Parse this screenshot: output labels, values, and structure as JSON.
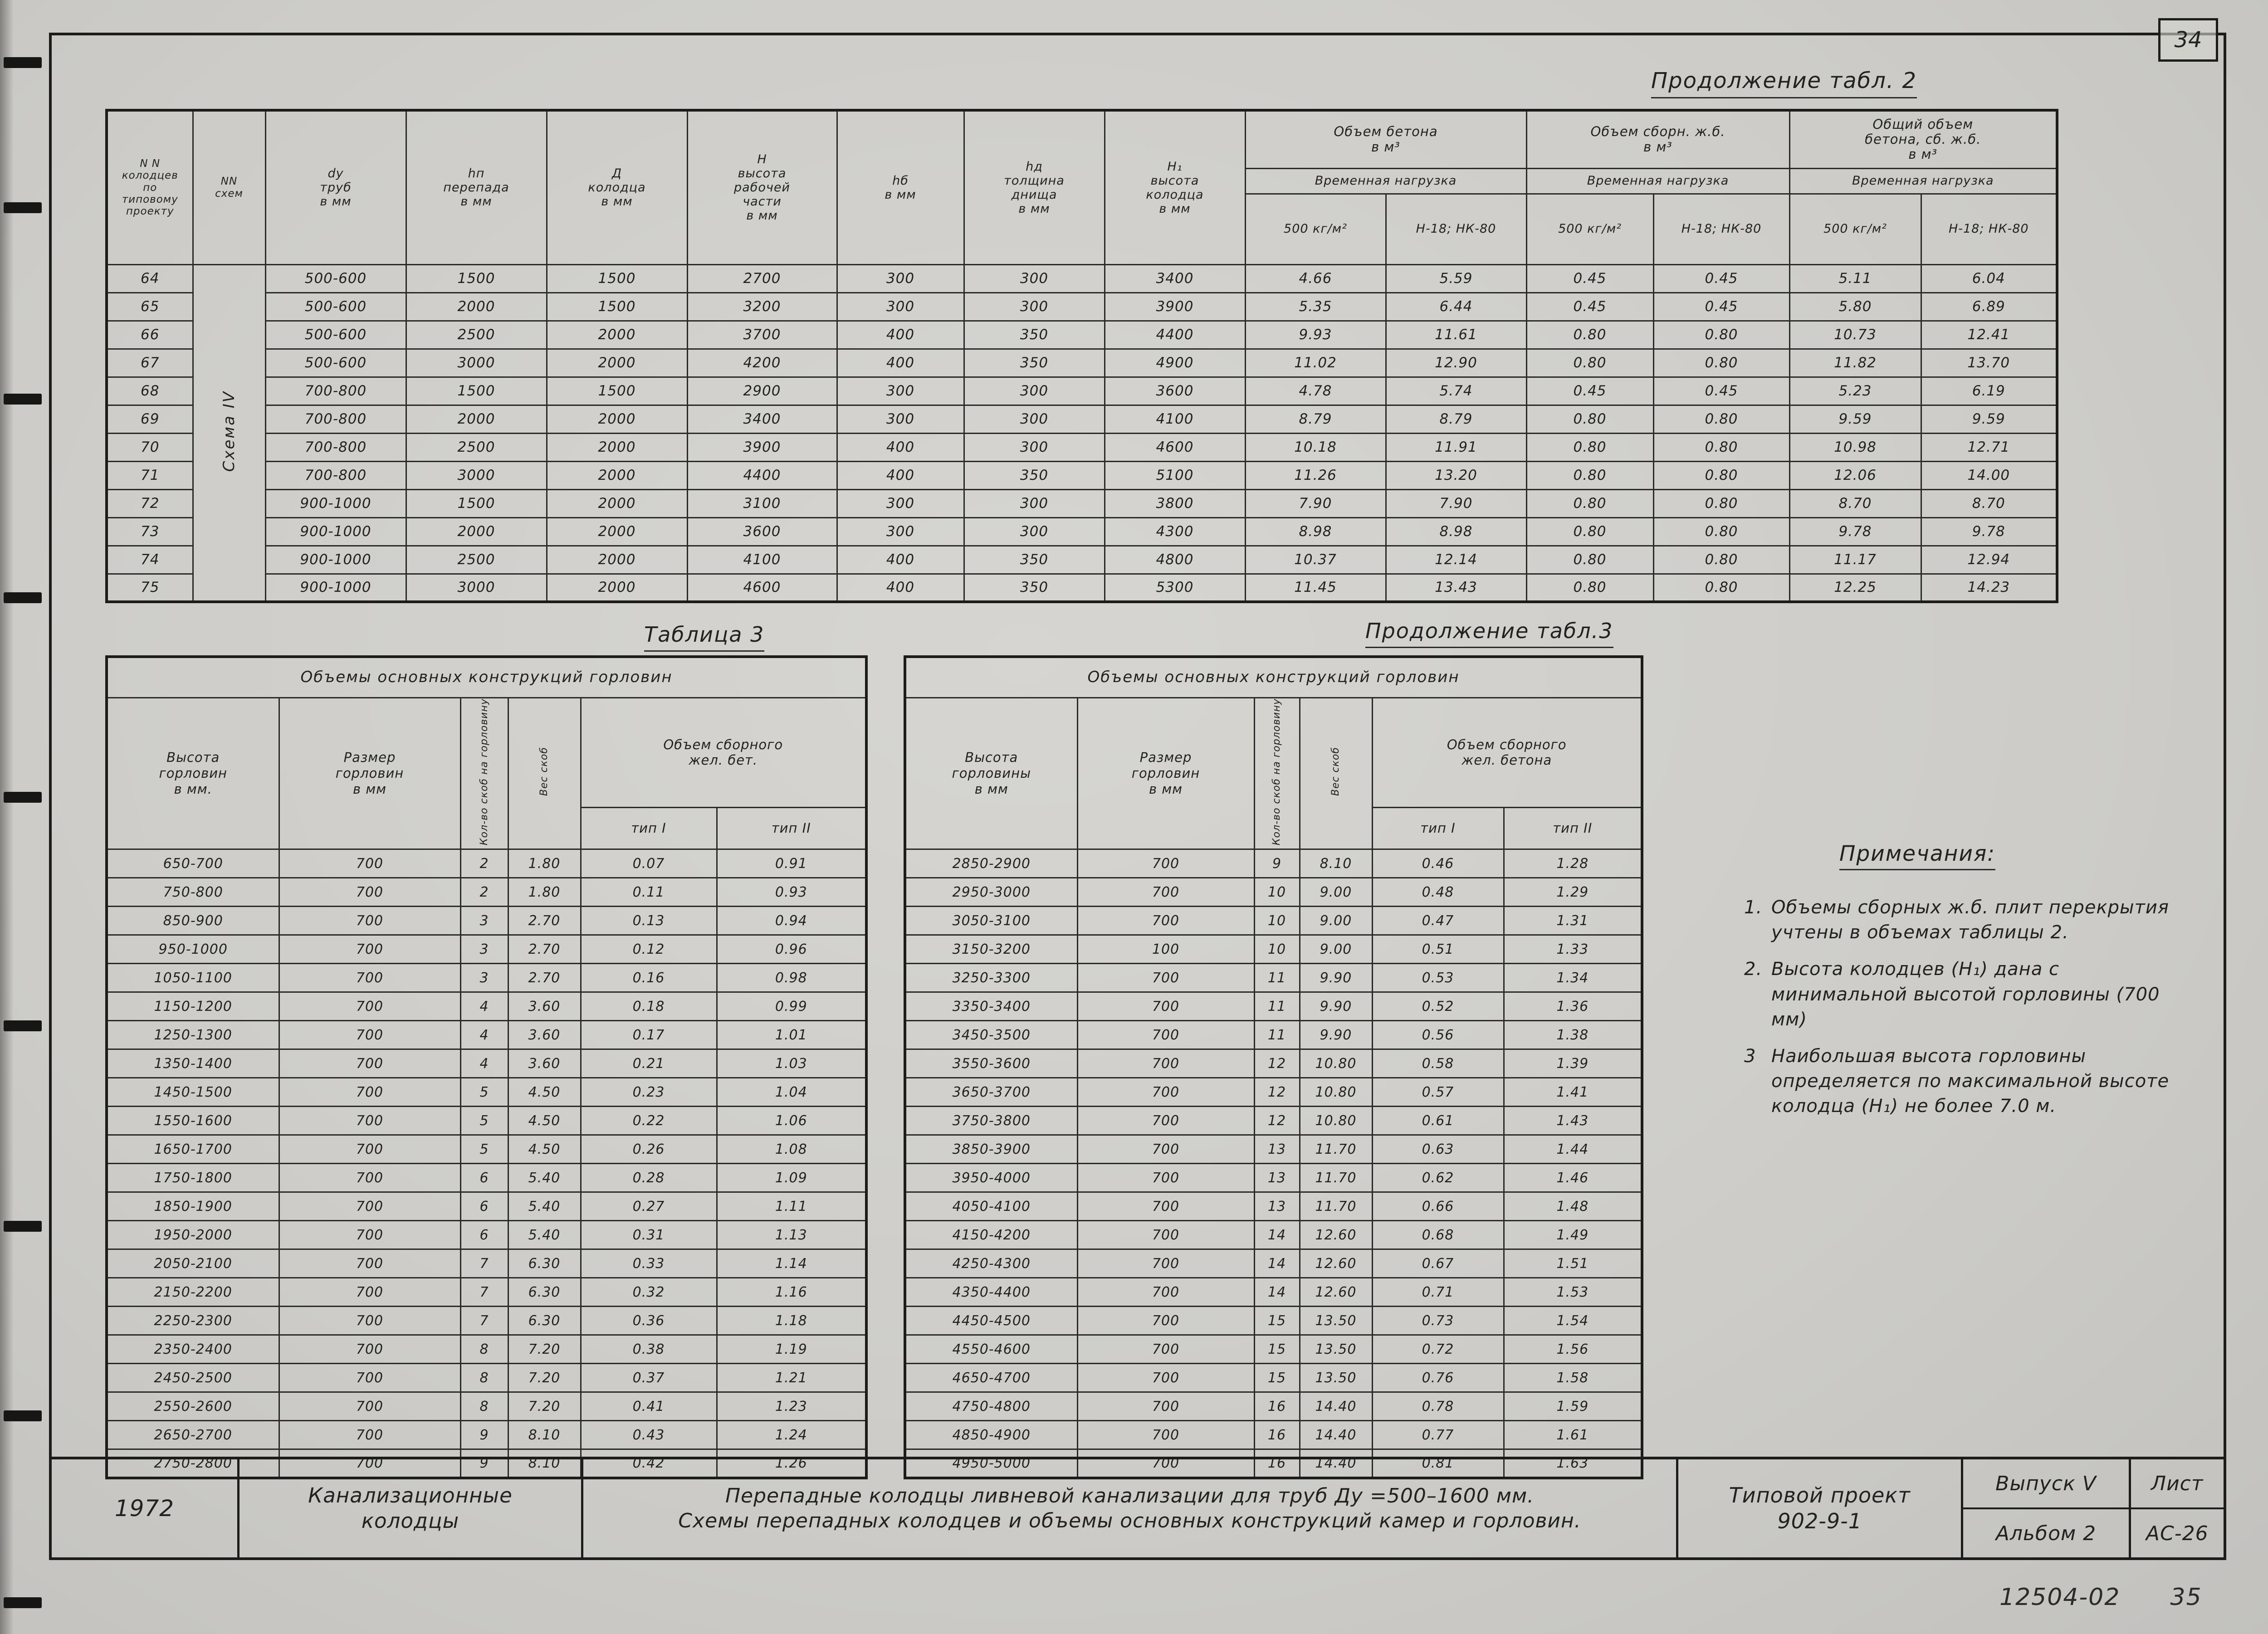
{
  "page": {
    "number": "34",
    "footer_code": "12504-02",
    "footer_page": "35"
  },
  "table2": {
    "caption": "Продолжение  табл. 2",
    "col_headers": {
      "well": "N N\nколодцев\nпо\nтиповому\nпроекту",
      "scheme": "NN\nсхем",
      "scheme_label": "Схема IV",
      "dy": "dу\nтруб\nв мм",
      "hn": "hп\nперепада\nв мм",
      "d": "Д\nколодца\nв мм",
      "h": "H\nвысота\nрабочей\nчасти\nв мм",
      "hb": "hб\nв мм",
      "hd": "hд\nтолщина\nднища\nв мм",
      "h1": "H₁\nвысота\nколодца\nв мм",
      "grp_concrete": "Объем бетона\nв м³",
      "grp_precast": "Объем сборн. ж.б.\nв м³",
      "grp_total": "Общий объем\nбетона, сб. ж.б.\nв м³",
      "load": "Временная нагрузка",
      "load_a": "500 кг/м²",
      "load_b": "Н-18; НК-80"
    },
    "rows": [
      [
        "64",
        "500-600",
        "1500",
        "1500",
        "2700",
        "300",
        "300",
        "3400",
        "4.66",
        "5.59",
        "0.45",
        "0.45",
        "5.11",
        "6.04"
      ],
      [
        "65",
        "500-600",
        "2000",
        "1500",
        "3200",
        "300",
        "300",
        "3900",
        "5.35",
        "6.44",
        "0.45",
        "0.45",
        "5.80",
        "6.89"
      ],
      [
        "66",
        "500-600",
        "2500",
        "2000",
        "3700",
        "400",
        "350",
        "4400",
        "9.93",
        "11.61",
        "0.80",
        "0.80",
        "10.73",
        "12.41"
      ],
      [
        "67",
        "500-600",
        "3000",
        "2000",
        "4200",
        "400",
        "350",
        "4900",
        "11.02",
        "12.90",
        "0.80",
        "0.80",
        "11.82",
        "13.70"
      ],
      [
        "68",
        "700-800",
        "1500",
        "1500",
        "2900",
        "300",
        "300",
        "3600",
        "4.78",
        "5.74",
        "0.45",
        "0.45",
        "5.23",
        "6.19"
      ],
      [
        "69",
        "700-800",
        "2000",
        "2000",
        "3400",
        "300",
        "300",
        "4100",
        "8.79",
        "8.79",
        "0.80",
        "0.80",
        "9.59",
        "9.59"
      ],
      [
        "70",
        "700-800",
        "2500",
        "2000",
        "3900",
        "400",
        "300",
        "4600",
        "10.18",
        "11.91",
        "0.80",
        "0.80",
        "10.98",
        "12.71"
      ],
      [
        "71",
        "700-800",
        "3000",
        "2000",
        "4400",
        "400",
        "350",
        "5100",
        "11.26",
        "13.20",
        "0.80",
        "0.80",
        "12.06",
        "14.00"
      ],
      [
        "72",
        "900-1000",
        "1500",
        "2000",
        "3100",
        "300",
        "300",
        "3800",
        "7.90",
        "7.90",
        "0.80",
        "0.80",
        "8.70",
        "8.70"
      ],
      [
        "73",
        "900-1000",
        "2000",
        "2000",
        "3600",
        "300",
        "300",
        "4300",
        "8.98",
        "8.98",
        "0.80",
        "0.80",
        "9.78",
        "9.78"
      ],
      [
        "74",
        "900-1000",
        "2500",
        "2000",
        "4100",
        "400",
        "350",
        "4800",
        "10.37",
        "12.14",
        "0.80",
        "0.80",
        "11.17",
        "12.94"
      ],
      [
        "75",
        "900-1000",
        "3000",
        "2000",
        "4600",
        "400",
        "350",
        "5300",
        "11.45",
        "13.43",
        "0.80",
        "0.80",
        "12.25",
        "14.23"
      ]
    ]
  },
  "table3_left": {
    "caption": "Таблица 3",
    "title": "Объемы   основных   конструкций   горловин",
    "col_headers": {
      "height": "Высота\nгорловин\nв мм.",
      "size": "Размер\nгорловин\nв мм",
      "staples": "Кол-во скоб на горловину",
      "weight": "Вес скоб",
      "grp": "Объем сборного\nжел. бет.",
      "type1": "тип I",
      "type2": "тип II"
    },
    "rows": [
      [
        "650-700",
        "700",
        "2",
        "1.80",
        "0.07",
        "0.91"
      ],
      [
        "750-800",
        "700",
        "2",
        "1.80",
        "0.11",
        "0.93"
      ],
      [
        "850-900",
        "700",
        "3",
        "2.70",
        "0.13",
        "0.94"
      ],
      [
        "950-1000",
        "700",
        "3",
        "2.70",
        "0.12",
        "0.96"
      ],
      [
        "1050-1100",
        "700",
        "3",
        "2.70",
        "0.16",
        "0.98"
      ],
      [
        "1150-1200",
        "700",
        "4",
        "3.60",
        "0.18",
        "0.99"
      ],
      [
        "1250-1300",
        "700",
        "4",
        "3.60",
        "0.17",
        "1.01"
      ],
      [
        "1350-1400",
        "700",
        "4",
        "3.60",
        "0.21",
        "1.03"
      ],
      [
        "1450-1500",
        "700",
        "5",
        "4.50",
        "0.23",
        "1.04"
      ],
      [
        "1550-1600",
        "700",
        "5",
        "4.50",
        "0.22",
        "1.06"
      ],
      [
        "1650-1700",
        "700",
        "5",
        "4.50",
        "0.26",
        "1.08"
      ],
      [
        "1750-1800",
        "700",
        "6",
        "5.40",
        "0.28",
        "1.09"
      ],
      [
        "1850-1900",
        "700",
        "6",
        "5.40",
        "0.27",
        "1.11"
      ],
      [
        "1950-2000",
        "700",
        "6",
        "5.40",
        "0.31",
        "1.13"
      ],
      [
        "2050-2100",
        "700",
        "7",
        "6.30",
        "0.33",
        "1.14"
      ],
      [
        "2150-2200",
        "700",
        "7",
        "6.30",
        "0.32",
        "1.16"
      ],
      [
        "2250-2300",
        "700",
        "7",
        "6.30",
        "0.36",
        "1.18"
      ],
      [
        "2350-2400",
        "700",
        "8",
        "7.20",
        "0.38",
        "1.19"
      ],
      [
        "2450-2500",
        "700",
        "8",
        "7.20",
        "0.37",
        "1.21"
      ],
      [
        "2550-2600",
        "700",
        "8",
        "7.20",
        "0.41",
        "1.23"
      ],
      [
        "2650-2700",
        "700",
        "9",
        "8.10",
        "0.43",
        "1.24"
      ],
      [
        "2750-2800",
        "700",
        "9",
        "8.10",
        "0.42",
        "1.26"
      ]
    ]
  },
  "table3_right": {
    "caption": "Продолжение табл.3",
    "title": "Объемы   основных   конструкций   горловин",
    "col_headers": {
      "height": "Высота\nгорловины\nв мм",
      "size": "Размер\nгорловин\nв мм",
      "staples": "Кол-во скоб на горловину",
      "weight": "Вес скоб",
      "grp": "Объем сборного\nжел. бетона",
      "type1": "тип I",
      "type2": "тип II"
    },
    "rows": [
      [
        "2850-2900",
        "700",
        "9",
        "8.10",
        "0.46",
        "1.28"
      ],
      [
        "2950-3000",
        "700",
        "10",
        "9.00",
        "0.48",
        "1.29"
      ],
      [
        "3050-3100",
        "700",
        "10",
        "9.00",
        "0.47",
        "1.31"
      ],
      [
        "3150-3200",
        "100",
        "10",
        "9.00",
        "0.51",
        "1.33"
      ],
      [
        "3250-3300",
        "700",
        "11",
        "9.90",
        "0.53",
        "1.34"
      ],
      [
        "3350-3400",
        "700",
        "11",
        "9.90",
        "0.52",
        "1.36"
      ],
      [
        "3450-3500",
        "700",
        "11",
        "9.90",
        "0.56",
        "1.38"
      ],
      [
        "3550-3600",
        "700",
        "12",
        "10.80",
        "0.58",
        "1.39"
      ],
      [
        "3650-3700",
        "700",
        "12",
        "10.80",
        "0.57",
        "1.41"
      ],
      [
        "3750-3800",
        "700",
        "12",
        "10.80",
        "0.61",
        "1.43"
      ],
      [
        "3850-3900",
        "700",
        "13",
        "11.70",
        "0.63",
        "1.44"
      ],
      [
        "3950-4000",
        "700",
        "13",
        "11.70",
        "0.62",
        "1.46"
      ],
      [
        "4050-4100",
        "700",
        "13",
        "11.70",
        "0.66",
        "1.48"
      ],
      [
        "4150-4200",
        "700",
        "14",
        "12.60",
        "0.68",
        "1.49"
      ],
      [
        "4250-4300",
        "700",
        "14",
        "12.60",
        "0.67",
        "1.51"
      ],
      [
        "4350-4400",
        "700",
        "14",
        "12.60",
        "0.71",
        "1.53"
      ],
      [
        "4450-4500",
        "700",
        "15",
        "13.50",
        "0.73",
        "1.54"
      ],
      [
        "4550-4600",
        "700",
        "15",
        "13.50",
        "0.72",
        "1.56"
      ],
      [
        "4650-4700",
        "700",
        "15",
        "13.50",
        "0.76",
        "1.58"
      ],
      [
        "4750-4800",
        "700",
        "16",
        "14.40",
        "0.78",
        "1.59"
      ],
      [
        "4850-4900",
        "700",
        "16",
        "14.40",
        "0.77",
        "1.61"
      ],
      [
        "4950-5000",
        "700",
        "16",
        "14.40",
        "0.81",
        "1.63"
      ]
    ]
  },
  "notes": {
    "title": "Примечания:",
    "items": [
      {
        "num": "1.",
        "text": "Объемы сборных ж.б. плит перекрытия  учтены  в объемах  таблицы 2."
      },
      {
        "num": "2.",
        "text": "Высота  колодцев  (H₁) дана  с  минимальной высотой горловины (700 мм)"
      },
      {
        "num": "3",
        "text": "Наибольшая высота горловины определяется по максимальной высоте колодца (H₁) не более 7.0 м."
      }
    ]
  },
  "titleblock": {
    "year": "1972",
    "doc_title": "Канализационные\nколодцы",
    "desc_line1": "Перепадные  колодцы  ливневой  канализации  для труб Ду =500–1600 мм.",
    "desc_line2": "Схемы перепадных колодцев и объемы основных конструкций камер и горловин.",
    "project_label": "Типовой проект",
    "project_no": "902-9-1",
    "issue": "Выпуск V",
    "album": "Альбом 2",
    "sheet_label": "Лист",
    "sheet_no": "АС-26"
  }
}
